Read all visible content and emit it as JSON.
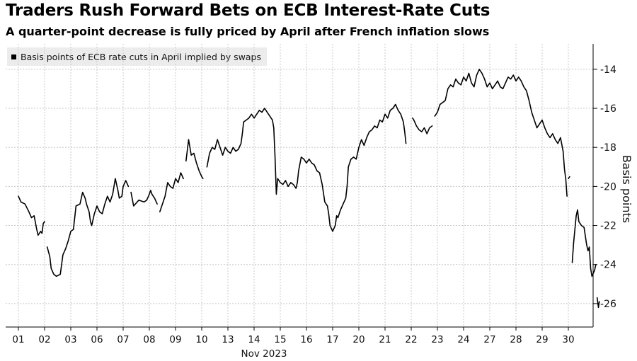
{
  "title": "Traders Rush Forward Bets on ECB Interest-Rate Cuts",
  "subtitle": "A quarter-point decrease is fully priced by April after French inflation slows",
  "chart_data": {
    "type": "line",
    "series": [
      {
        "name": "Basis points of ECB rate cuts in April implied by swaps",
        "color": "#000000",
        "segments": [
          [
            [
              0.0,
              -20.5
            ],
            [
              0.1,
              -20.8
            ],
            [
              0.25,
              -20.9
            ],
            [
              0.4,
              -21.3
            ],
            [
              0.5,
              -21.6
            ],
            [
              0.6,
              -21.5
            ],
            [
              0.7,
              -22.2
            ],
            [
              0.75,
              -22.5
            ],
            [
              0.85,
              -22.3
            ],
            [
              0.9,
              -22.4
            ],
            [
              0.95,
              -21.9
            ],
            [
              1.0,
              -21.8
            ]
          ],
          [
            [
              1.1,
              -23.1
            ],
            [
              1.2,
              -23.6
            ],
            [
              1.25,
              -24.2
            ],
            [
              1.35,
              -24.5
            ],
            [
              1.45,
              -24.6
            ],
            [
              1.6,
              -24.5
            ],
            [
              1.7,
              -23.5
            ],
            [
              1.8,
              -23.2
            ],
            [
              1.9,
              -22.8
            ],
            [
              2.0,
              -22.3
            ],
            [
              2.1,
              -22.2
            ],
            [
              2.2,
              -21.0
            ],
            [
              2.35,
              -20.9
            ],
            [
              2.45,
              -20.3
            ],
            [
              2.55,
              -20.6
            ],
            [
              2.6,
              -20.9
            ],
            [
              2.7,
              -21.3
            ],
            [
              2.75,
              -21.8
            ],
            [
              2.8,
              -22.0
            ],
            [
              2.9,
              -21.4
            ],
            [
              3.0,
              -21.0
            ],
            [
              3.1,
              -21.3
            ],
            [
              3.2,
              -21.4
            ],
            [
              3.3,
              -20.9
            ],
            [
              3.4,
              -20.5
            ],
            [
              3.5,
              -20.8
            ],
            [
              3.6,
              -20.4
            ],
            [
              3.7,
              -19.6
            ],
            [
              3.8,
              -20.2
            ],
            [
              3.85,
              -20.6
            ],
            [
              3.95,
              -20.5
            ],
            [
              4.0,
              -20.0
            ],
            [
              4.1,
              -19.7
            ],
            [
              4.2,
              -20.0
            ]
          ],
          [
            [
              4.3,
              -20.3
            ],
            [
              4.4,
              -21.0
            ],
            [
              4.6,
              -20.7
            ],
            [
              4.8,
              -20.8
            ],
            [
              4.9,
              -20.7
            ],
            [
              5.0,
              -20.4
            ],
            [
              5.05,
              -20.2
            ],
            [
              5.1,
              -20.4
            ],
            [
              5.2,
              -20.6
            ],
            [
              5.3,
              -20.9
            ]
          ],
          [
            [
              5.4,
              -21.3
            ],
            [
              5.5,
              -20.9
            ],
            [
              5.6,
              -20.5
            ],
            [
              5.7,
              -19.8
            ],
            [
              5.8,
              -20.0
            ],
            [
              5.9,
              -20.1
            ],
            [
              6.0,
              -19.6
            ],
            [
              6.1,
              -19.8
            ],
            [
              6.2,
              -19.3
            ],
            [
              6.3,
              -19.6
            ]
          ],
          [
            [
              6.4,
              -18.7
            ],
            [
              6.5,
              -17.6
            ],
            [
              6.6,
              -18.4
            ],
            [
              6.7,
              -18.3
            ],
            [
              6.8,
              -18.8
            ],
            [
              6.9,
              -19.2
            ],
            [
              7.0,
              -19.5
            ],
            [
              7.05,
              -19.6
            ]
          ],
          [
            [
              7.2,
              -19.0
            ],
            [
              7.3,
              -18.3
            ],
            [
              7.4,
              -18.0
            ],
            [
              7.5,
              -18.1
            ],
            [
              7.6,
              -17.6
            ],
            [
              7.7,
              -18.0
            ],
            [
              7.8,
              -18.4
            ],
            [
              7.9,
              -18.0
            ],
            [
              8.0,
              -18.2
            ],
            [
              8.1,
              -18.3
            ],
            [
              8.2,
              -18.0
            ],
            [
              8.3,
              -18.2
            ],
            [
              8.4,
              -18.1
            ],
            [
              8.5,
              -17.8
            ],
            [
              8.55,
              -17.3
            ],
            [
              8.6,
              -16.7
            ],
            [
              8.7,
              -16.6
            ],
            [
              8.8,
              -16.5
            ],
            [
              8.9,
              -16.3
            ],
            [
              9.0,
              -16.5
            ],
            [
              9.1,
              -16.3
            ],
            [
              9.2,
              -16.1
            ],
            [
              9.3,
              -16.2
            ],
            [
              9.4,
              -16.0
            ],
            [
              9.5,
              -16.2
            ],
            [
              9.6,
              -16.4
            ],
            [
              9.7,
              -16.6
            ],
            [
              9.75,
              -17.0
            ],
            [
              9.8,
              -18.5
            ],
            [
              9.85,
              -20.4
            ],
            [
              9.9,
              -19.6
            ],
            [
              10.0,
              -19.8
            ],
            [
              10.1,
              -19.9
            ],
            [
              10.2,
              -19.7
            ],
            [
              10.3,
              -20.0
            ],
            [
              10.4,
              -19.8
            ],
            [
              10.5,
              -19.9
            ],
            [
              10.6,
              -20.1
            ],
            [
              10.65,
              -19.8
            ],
            [
              10.7,
              -19.2
            ],
            [
              10.8,
              -18.5
            ],
            [
              10.9,
              -18.6
            ],
            [
              11.0,
              -18.8
            ],
            [
              11.1,
              -18.6
            ],
            [
              11.2,
              -18.8
            ],
            [
              11.3,
              -18.9
            ],
            [
              11.4,
              -19.2
            ],
            [
              11.5,
              -19.3
            ],
            [
              11.6,
              -19.9
            ],
            [
              11.7,
              -20.8
            ],
            [
              11.8,
              -21.0
            ],
            [
              11.85,
              -21.4
            ],
            [
              11.9,
              -22.0
            ],
            [
              12.0,
              -22.3
            ],
            [
              12.1,
              -22.0
            ],
            [
              12.15,
              -21.5
            ],
            [
              12.2,
              -21.6
            ],
            [
              12.3,
              -21.2
            ],
            [
              12.4,
              -20.9
            ],
            [
              12.5,
              -20.6
            ],
            [
              12.55,
              -20.0
            ],
            [
              12.6,
              -19.0
            ],
            [
              12.7,
              -18.6
            ],
            [
              12.8,
              -18.5
            ],
            [
              12.9,
              -18.6
            ],
            [
              13.0,
              -18.0
            ],
            [
              13.1,
              -17.6
            ],
            [
              13.2,
              -17.9
            ],
            [
              13.3,
              -17.5
            ],
            [
              13.4,
              -17.2
            ],
            [
              13.5,
              -17.1
            ],
            [
              13.6,
              -16.9
            ],
            [
              13.7,
              -17.0
            ],
            [
              13.8,
              -16.6
            ],
            [
              13.9,
              -16.7
            ],
            [
              14.0,
              -16.3
            ],
            [
              14.1,
              -16.5
            ],
            [
              14.2,
              -16.1
            ],
            [
              14.3,
              -16.0
            ],
            [
              14.4,
              -15.8
            ],
            [
              14.5,
              -16.1
            ],
            [
              14.6,
              -16.3
            ],
            [
              14.7,
              -16.7
            ],
            [
              14.75,
              -17.2
            ],
            [
              14.8,
              -17.8
            ]
          ],
          [
            [
              15.05,
              -16.5
            ],
            [
              15.1,
              -16.6
            ],
            [
              15.2,
              -16.9
            ],
            [
              15.3,
              -17.1
            ],
            [
              15.4,
              -17.2
            ],
            [
              15.5,
              -17.0
            ],
            [
              15.6,
              -17.3
            ],
            [
              15.7,
              -17.0
            ],
            [
              15.8,
              -16.9
            ]
          ],
          [
            [
              15.9,
              -16.4
            ],
            [
              16.0,
              -16.2
            ],
            [
              16.1,
              -15.8
            ],
            [
              16.2,
              -15.7
            ],
            [
              16.3,
              -15.6
            ],
            [
              16.4,
              -15.0
            ],
            [
              16.5,
              -14.8
            ],
            [
              16.6,
              -14.9
            ],
            [
              16.7,
              -14.5
            ],
            [
              16.8,
              -14.7
            ],
            [
              16.9,
              -14.8
            ],
            [
              17.0,
              -14.4
            ],
            [
              17.1,
              -14.6
            ],
            [
              17.2,
              -14.2
            ],
            [
              17.3,
              -14.7
            ],
            [
              17.4,
              -14.9
            ],
            [
              17.5,
              -14.3
            ],
            [
              17.6,
              -14.0
            ],
            [
              17.7,
              -14.2
            ],
            [
              17.8,
              -14.5
            ],
            [
              17.9,
              -14.9
            ],
            [
              18.0,
              -14.7
            ],
            [
              18.1,
              -15.0
            ],
            [
              18.2,
              -14.8
            ],
            [
              18.3,
              -14.6
            ],
            [
              18.4,
              -14.9
            ],
            [
              18.5,
              -15.0
            ],
            [
              18.6,
              -14.7
            ],
            [
              18.7,
              -14.4
            ],
            [
              18.8,
              -14.5
            ],
            [
              18.9,
              -14.3
            ],
            [
              19.0,
              -14.6
            ],
            [
              19.1,
              -14.4
            ],
            [
              19.2,
              -14.6
            ],
            [
              19.3,
              -14.9
            ],
            [
              19.4,
              -15.1
            ],
            [
              19.5,
              -15.6
            ],
            [
              19.6,
              -16.2
            ],
            [
              19.7,
              -16.6
            ],
            [
              19.8,
              -17.0
            ],
            [
              19.9,
              -16.8
            ],
            [
              20.0,
              -16.6
            ],
            [
              20.1,
              -17.0
            ],
            [
              20.2,
              -17.3
            ],
            [
              20.3,
              -17.5
            ],
            [
              20.4,
              -17.3
            ],
            [
              20.5,
              -17.6
            ],
            [
              20.6,
              -17.8
            ],
            [
              20.7,
              -17.5
            ],
            [
              20.8,
              -18.2
            ],
            [
              20.85,
              -19.1
            ],
            [
              20.9,
              -19.6
            ],
            [
              20.95,
              -20.5
            ]
          ],
          [
            [
              21.0,
              -19.6
            ],
            [
              21.05,
              -19.5
            ]
          ],
          [
            [
              21.15,
              -23.9
            ],
            [
              21.2,
              -22.9
            ],
            [
              21.3,
              -21.5
            ],
            [
              21.35,
              -21.2
            ],
            [
              21.4,
              -21.8
            ],
            [
              21.5,
              -22.0
            ],
            [
              21.6,
              -22.1
            ],
            [
              21.7,
              -23.0
            ],
            [
              21.75,
              -23.3
            ],
            [
              21.8,
              -23.1
            ],
            [
              21.85,
              -24.2
            ],
            [
              21.9,
              -24.6
            ],
            [
              22.0,
              -24.3
            ],
            [
              22.05,
              -24.0
            ]
          ],
          [
            [
              22.1,
              -25.7
            ],
            [
              22.15,
              -26.2
            ],
            [
              22.18,
              -25.9
            ]
          ]
        ]
      }
    ],
    "x_tick_labels": [
      "01",
      "02",
      "03",
      "06",
      "07",
      "08",
      "09",
      "10",
      "13",
      "14",
      "15",
      "16",
      "17",
      "20",
      "21",
      "22",
      "23",
      "24",
      "27",
      "28",
      "29",
      "30"
    ],
    "x_month_label": "Nov 2023",
    "y_ticks": [
      -14,
      -16,
      -18,
      -20,
      -22,
      -24,
      -26
    ],
    "ylim": [
      -27.2,
      -12.7
    ],
    "ylabel": "Basis points",
    "grid": true,
    "legend": "top-left"
  }
}
